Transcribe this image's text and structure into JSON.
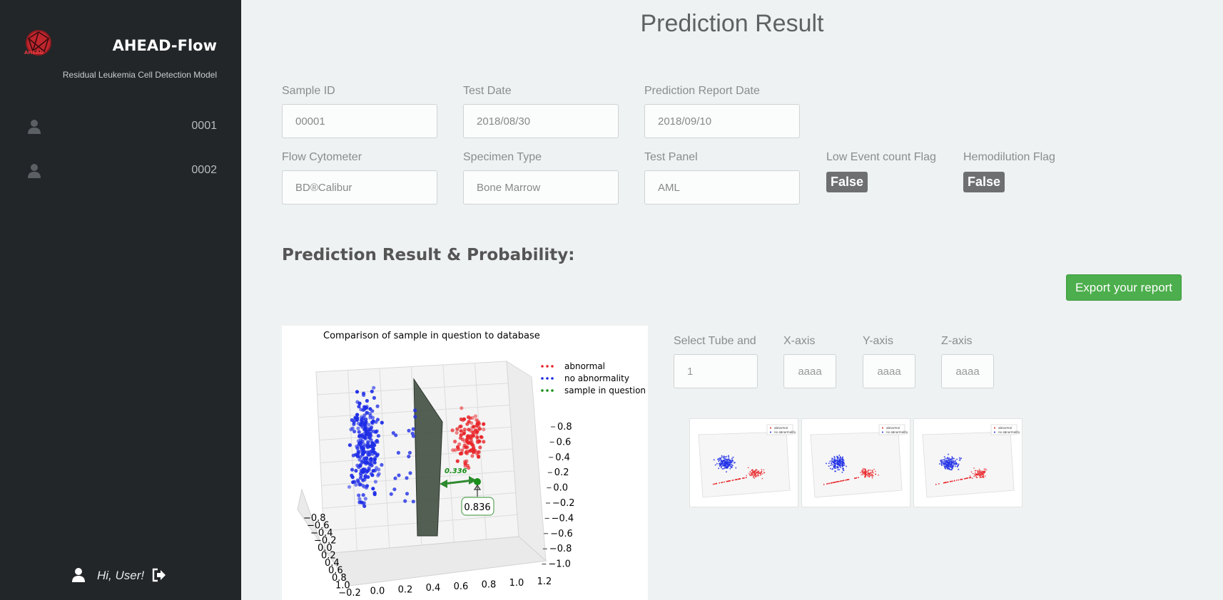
{
  "sidebar": {
    "app_title": "AHEAD-Flow",
    "subtitle": "Residual Leukemia Cell Detection Model",
    "logo_text": "AHEAD",
    "items": [
      {
        "label": "0001",
        "icon": "user-icon"
      },
      {
        "label": "0002",
        "icon": "user-icon"
      }
    ],
    "footer": {
      "greeting": "Hi, User!",
      "icon": "user-icon",
      "logout_icon": "sign-out-icon"
    }
  },
  "page": {
    "title": "Prediction Result",
    "fields": {
      "sample_id": {
        "label": "Sample ID",
        "value": "00001"
      },
      "test_date": {
        "label": "Test Date",
        "value": "2018/08/30"
      },
      "report_date": {
        "label": "Prediction Report Date",
        "value": "2018/09/10"
      },
      "flow_cytometer": {
        "label": "Flow Cytometer",
        "value": "BD®Calibur"
      },
      "specimen_type": {
        "label": "Specimen Type",
        "value": "Bone Marrow"
      },
      "test_panel": {
        "label": "Test Panel",
        "value": "AML"
      }
    },
    "flags": {
      "low_event": {
        "label": "Low Event count Flag",
        "value": "False"
      },
      "hemodilution": {
        "label": "Hemodilution Flag",
        "value": "False"
      }
    },
    "section_heading": "Prediction Result & Probability:",
    "export_label": "Export your report",
    "controls": {
      "tube": {
        "label": "Select Tube and",
        "value": "1"
      },
      "x_axis": {
        "label": "X-axis",
        "value": "aaaa"
      },
      "y_axis": {
        "label": "Y-axis",
        "value": "aaaa"
      },
      "z_axis": {
        "label": "Z-axis",
        "value": "aaaa"
      }
    },
    "thumbnail_legend": [
      "abnormal",
      "no abnormality"
    ]
  },
  "colors": {
    "sidebar_bg": "#222629",
    "export_green": "#4cae4c",
    "flag_gray": "#6d6f71",
    "abnormal": "#e8262a",
    "normal": "#1f2ee6",
    "sample": "#1a8f1a"
  },
  "chart_data": {
    "type": "scatter",
    "title": "Comparison of sample in question to database",
    "legend": [
      "abnormal",
      "no abnormality",
      "sample in question"
    ],
    "legend_position": "top-right",
    "series": [
      {
        "name": "abnormal",
        "color": "#e8262a"
      },
      {
        "name": "no abnormality",
        "color": "#1f2ee6"
      },
      {
        "name": "sample in question",
        "color": "#1a8f1a"
      }
    ],
    "z_ticks": [
      "0.8",
      "0.6",
      "0.4",
      "0.2",
      "0.0",
      "−0.2",
      "−0.4",
      "−0.6",
      "−0.8",
      "−1.0"
    ],
    "x_ticks": [
      "−0.2",
      "0.0",
      "0.2",
      "0.4",
      "0.6",
      "0.8",
      "1.0",
      "1.2"
    ],
    "y_ticks": [
      "−0.8",
      "−0.6",
      "−0.4",
      "−0.2",
      "0.0",
      "0.2",
      "0.4",
      "0.6",
      "0.8",
      "1.0"
    ],
    "distance_label": "0.336",
    "probability_label": "0.836",
    "grid": true
  }
}
